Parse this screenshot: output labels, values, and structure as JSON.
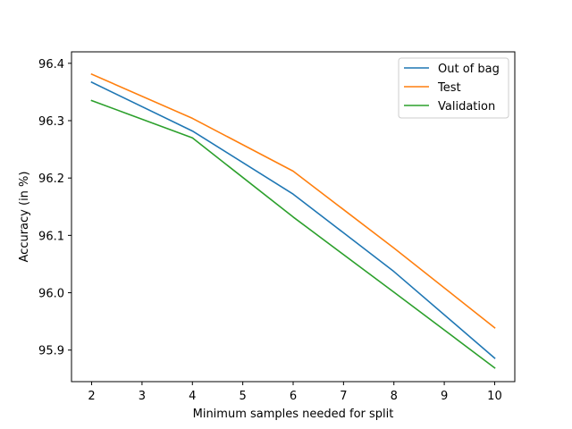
{
  "chart_data": {
    "type": "line",
    "title": "",
    "xlabel": "Minimum samples needed for split",
    "ylabel": "Accuracy (in %)",
    "x": [
      2,
      4,
      6,
      8,
      10
    ],
    "xlim": [
      1.6,
      10.4
    ],
    "ylim": [
      95.845,
      96.42
    ],
    "xticks": [
      2,
      3,
      4,
      5,
      6,
      7,
      8,
      9,
      10
    ],
    "yticks": [
      95.9,
      96.0,
      96.1,
      96.2,
      96.3,
      96.4
    ],
    "ytick_labels": [
      "95.9",
      "96.0",
      "96.1",
      "96.2",
      "96.3",
      "96.4"
    ],
    "grid": false,
    "legend_position": "top-right",
    "series": [
      {
        "name": "Out of bag",
        "color": "#1f77b4",
        "values": [
          96.367,
          96.282,
          96.172,
          96.037,
          95.886
        ]
      },
      {
        "name": "Test",
        "color": "#ff7f0e",
        "values": [
          96.381,
          96.304,
          96.212,
          96.078,
          95.939
        ]
      },
      {
        "name": "Validation",
        "color": "#2ca02c",
        "values": [
          96.335,
          96.27,
          96.132,
          96.001,
          95.869
        ]
      }
    ]
  }
}
